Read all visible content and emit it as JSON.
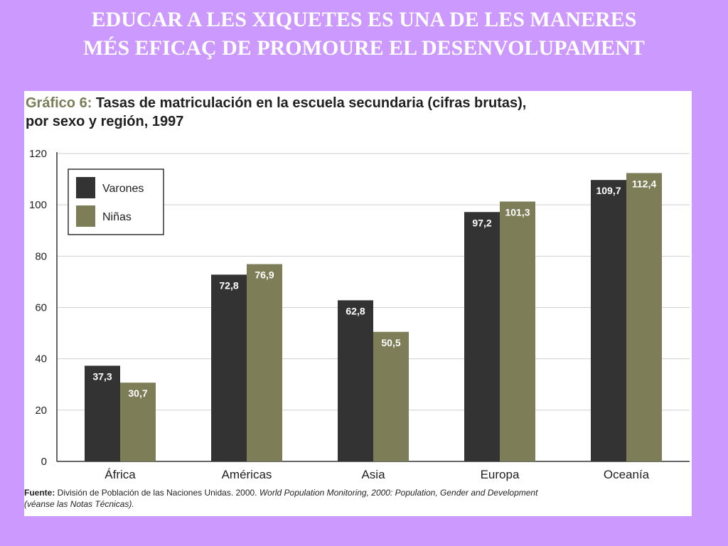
{
  "slide": {
    "title_line1": "EDUCAR A LES XIQUETES ES UNA DE LES MANERES",
    "title_line2": "MÉS EFICAÇ  DE PROMOURE EL DESENVOLUPAMENT"
  },
  "colors": {
    "background": "#cc99ff",
    "varones": "#333333",
    "ninas": "#7d7e58",
    "title_accent": "#7a7d57"
  },
  "chart_data": {
    "type": "bar",
    "title_lead": "Gráfico 6:",
    "title_line1": "Tasas de matriculación en la escuela secundaria (cifras brutas),",
    "title_line2": "por sexo y región, 1997",
    "categories": [
      "África",
      "Américas",
      "Asia",
      "Europa",
      "Oceanía"
    ],
    "series": [
      {
        "name": "Varones",
        "values": [
          37.3,
          72.8,
          62.8,
          97.2,
          109.7
        ],
        "labels": [
          "37,3",
          "72,8",
          "62,8",
          "97,2",
          "109,7"
        ]
      },
      {
        "name": "Niñas",
        "values": [
          30.7,
          76.9,
          50.5,
          101.3,
          112.4
        ],
        "labels": [
          "30,7",
          "76,9",
          "50,5",
          "101,3",
          "112,4"
        ]
      }
    ],
    "ylim": [
      0,
      120
    ],
    "yticks": [
      0,
      20,
      40,
      60,
      80,
      100,
      120
    ],
    "grid": true,
    "legend_position": "top-left",
    "source_label": "Fuente:",
    "source_text": " División de Población de las Naciones Unidas. 2000. ",
    "source_italic": "World Population Monitoring, 2000: Population, Gender and Development",
    "source_line2": "(véanse las Notas Técnicas)."
  }
}
